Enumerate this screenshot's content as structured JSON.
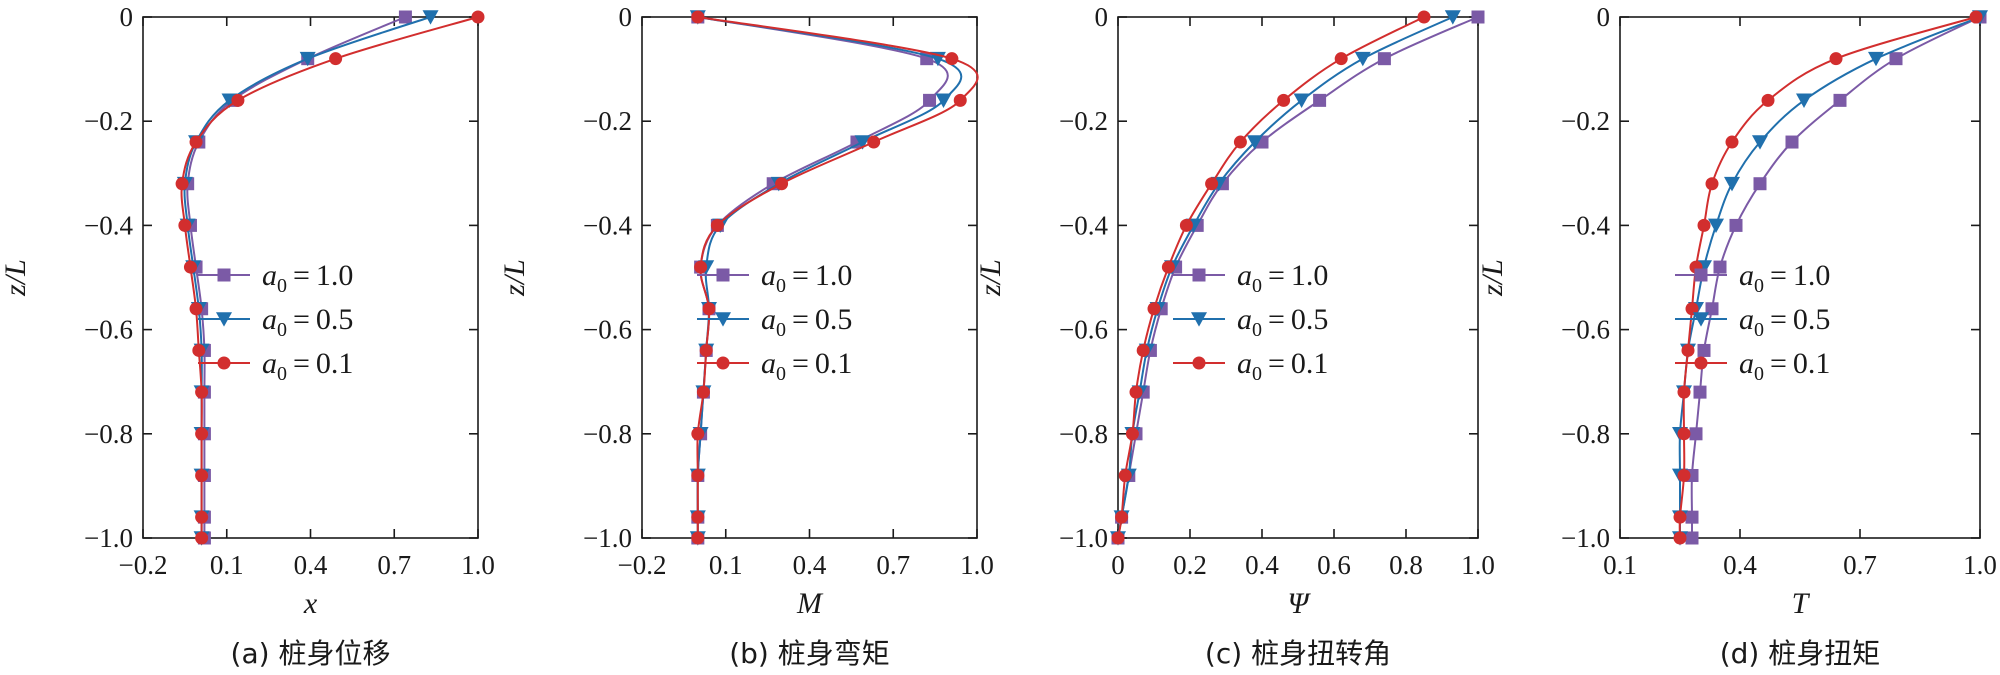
{
  "chart_data": [
    {
      "type": "line",
      "caption": "(a)  桩身位移",
      "xlabel": "x",
      "ylabel": "z/L",
      "xlim": [
        -0.2,
        1.0
      ],
      "ylim": [
        -1.0,
        0
      ],
      "xticks": [
        -0.2,
        0.1,
        0.4,
        0.7,
        1.0
      ],
      "xtick_labels": [
        "−0.2",
        "0.1",
        "0.4",
        "0.7",
        "1.0"
      ],
      "yticks": [
        0,
        -0.2,
        -0.4,
        -0.6,
        -0.8,
        -1.0
      ],
      "ytick_labels": [
        "0",
        "−0.2",
        "−0.4",
        "−0.6",
        "−0.8",
        "−1.0"
      ],
      "legend": "right",
      "series": [
        {
          "name": "1.0",
          "marker": "square",
          "color": "#7b5aa6",
          "x": [
            0.74,
            0.39,
            0.12,
            0.0,
            -0.04,
            -0.03,
            -0.01,
            0.01,
            0.02,
            0.02,
            0.02,
            0.02,
            0.02,
            0.02
          ],
          "y": [
            0,
            -0.08,
            -0.16,
            -0.24,
            -0.32,
            -0.4,
            -0.48,
            -0.56,
            -0.64,
            -0.72,
            -0.8,
            -0.88,
            -0.96,
            -1.0
          ]
        },
        {
          "name": "0.5",
          "marker": "triangle-down",
          "color": "#2070ad",
          "x": [
            0.83,
            0.39,
            0.11,
            -0.01,
            -0.05,
            -0.04,
            -0.02,
            0.0,
            0.01,
            0.01,
            0.01,
            0.01,
            0.01,
            0.01
          ],
          "y": [
            0,
            -0.08,
            -0.16,
            -0.24,
            -0.32,
            -0.4,
            -0.48,
            -0.56,
            -0.64,
            -0.72,
            -0.8,
            -0.88,
            -0.96,
            -1.0
          ]
        },
        {
          "name": "0.1",
          "marker": "circle",
          "color": "#d22e2e",
          "x": [
            1.0,
            0.49,
            0.14,
            -0.01,
            -0.06,
            -0.05,
            -0.03,
            -0.01,
            0.0,
            0.01,
            0.01,
            0.01,
            0.01,
            0.01
          ],
          "y": [
            0,
            -0.08,
            -0.16,
            -0.24,
            -0.32,
            -0.4,
            -0.48,
            -0.56,
            -0.64,
            -0.72,
            -0.8,
            -0.88,
            -0.96,
            -1.0
          ]
        }
      ]
    },
    {
      "type": "line",
      "caption": "(b)  桩身弯矩",
      "xlabel": "M",
      "ylabel": "z/L",
      "xlim": [
        -0.2,
        1.0
      ],
      "ylim": [
        -1.0,
        0
      ],
      "xticks": [
        -0.2,
        0.1,
        0.4,
        0.7,
        1.0
      ],
      "xtick_labels": [
        "−0.2",
        "0.1",
        "0.4",
        "0.7",
        "1.0"
      ],
      "yticks": [
        0,
        -0.2,
        -0.4,
        -0.6,
        -0.8,
        -1.0
      ],
      "ytick_labels": [
        "0",
        "−0.2",
        "−0.4",
        "−0.6",
        "−0.8",
        "−1.0"
      ],
      "legend": "right",
      "series": [
        {
          "name": "1.0",
          "marker": "square",
          "color": "#7b5aa6",
          "x": [
            0.0,
            0.82,
            0.83,
            0.57,
            0.27,
            0.07,
            0.01,
            0.04,
            0.03,
            0.02,
            0.01,
            0.0,
            0.0,
            0.0
          ],
          "y": [
            0,
            -0.08,
            -0.16,
            -0.24,
            -0.32,
            -0.4,
            -0.48,
            -0.56,
            -0.64,
            -0.72,
            -0.8,
            -0.88,
            -0.96,
            -1.0
          ]
        },
        {
          "name": "0.5",
          "marker": "triangle-down",
          "color": "#2070ad",
          "x": [
            0.0,
            0.86,
            0.88,
            0.59,
            0.29,
            0.08,
            0.03,
            0.04,
            0.03,
            0.02,
            0.01,
            0.0,
            0.0,
            0.0
          ],
          "y": [
            0,
            -0.08,
            -0.16,
            -0.24,
            -0.32,
            -0.4,
            -0.48,
            -0.56,
            -0.64,
            -0.72,
            -0.8,
            -0.88,
            -0.96,
            -1.0
          ]
        },
        {
          "name": "0.1",
          "marker": "circle",
          "color": "#d22e2e",
          "x": [
            0.0,
            0.91,
            0.94,
            0.63,
            0.3,
            0.07,
            0.01,
            0.04,
            0.03,
            0.02,
            0.0,
            0.0,
            0.0,
            0.0
          ],
          "y": [
            0,
            -0.08,
            -0.16,
            -0.24,
            -0.32,
            -0.4,
            -0.48,
            -0.56,
            -0.64,
            -0.72,
            -0.8,
            -0.88,
            -0.96,
            -1.0
          ]
        }
      ]
    },
    {
      "type": "line",
      "caption": "(c)  桩身扭转角",
      "xlabel": "Ψ",
      "ylabel": "z/L",
      "xlim": [
        0,
        1.0
      ],
      "ylim": [
        -1.0,
        0
      ],
      "xticks": [
        0,
        0.2,
        0.4,
        0.6,
        0.8,
        1.0
      ],
      "xtick_labels": [
        "0",
        "0.2",
        "0.4",
        "0.6",
        "0.8",
        "1.0"
      ],
      "yticks": [
        0,
        -0.2,
        -0.4,
        -0.6,
        -0.8,
        -1.0
      ],
      "ytick_labels": [
        "0",
        "−0.2",
        "−0.4",
        "−0.6",
        "−0.8",
        "−1.0"
      ],
      "legend": "right",
      "series": [
        {
          "name": "1.0",
          "marker": "square",
          "color": "#7b5aa6",
          "x": [
            1.0,
            0.74,
            0.56,
            0.4,
            0.29,
            0.22,
            0.16,
            0.12,
            0.09,
            0.07,
            0.05,
            0.03,
            0.01,
            0.0
          ],
          "y": [
            0,
            -0.08,
            -0.16,
            -0.24,
            -0.32,
            -0.4,
            -0.48,
            -0.56,
            -0.64,
            -0.72,
            -0.8,
            -0.88,
            -0.96,
            -1.0
          ]
        },
        {
          "name": "0.5",
          "marker": "triangle-down",
          "color": "#2070ad",
          "x": [
            0.93,
            0.68,
            0.51,
            0.38,
            0.28,
            0.21,
            0.15,
            0.11,
            0.08,
            0.06,
            0.04,
            0.03,
            0.01,
            0.0
          ],
          "y": [
            0,
            -0.08,
            -0.16,
            -0.24,
            -0.32,
            -0.4,
            -0.48,
            -0.56,
            -0.64,
            -0.72,
            -0.8,
            -0.88,
            -0.96,
            -1.0
          ]
        },
        {
          "name": "0.1",
          "marker": "circle",
          "color": "#d22e2e",
          "x": [
            0.85,
            0.62,
            0.46,
            0.34,
            0.26,
            0.19,
            0.14,
            0.1,
            0.07,
            0.05,
            0.04,
            0.02,
            0.01,
            0.0
          ],
          "y": [
            0,
            -0.08,
            -0.16,
            -0.24,
            -0.32,
            -0.4,
            -0.48,
            -0.56,
            -0.64,
            -0.72,
            -0.8,
            -0.88,
            -0.96,
            -1.0
          ]
        }
      ]
    },
    {
      "type": "line",
      "caption": "(d)  桩身扭矩",
      "xlabel": "T",
      "ylabel": "z/L",
      "xlim": [
        0.1,
        1.0
      ],
      "ylim": [
        -1.0,
        0
      ],
      "xticks": [
        0.1,
        0.4,
        0.7,
        1.0
      ],
      "xtick_labels": [
        "0.1",
        "0.4",
        "0.7",
        "1.0"
      ],
      "yticks": [
        0,
        -0.2,
        -0.4,
        -0.6,
        -0.8,
        -1.0
      ],
      "ytick_labels": [
        "0",
        "−0.2",
        "−0.4",
        "−0.6",
        "−0.8",
        "−1.0"
      ],
      "legend": "right",
      "series": [
        {
          "name": "1.0",
          "marker": "square",
          "color": "#7b5aa6",
          "x": [
            1.0,
            0.79,
            0.65,
            0.53,
            0.45,
            0.39,
            0.35,
            0.33,
            0.31,
            0.3,
            0.29,
            0.28,
            0.28,
            0.28
          ],
          "y": [
            0,
            -0.08,
            -0.16,
            -0.24,
            -0.32,
            -0.4,
            -0.48,
            -0.56,
            -0.64,
            -0.72,
            -0.8,
            -0.88,
            -0.96,
            -1.0
          ]
        },
        {
          "name": "0.5",
          "marker": "triangle-down",
          "color": "#2070ad",
          "x": [
            1.0,
            0.74,
            0.56,
            0.45,
            0.38,
            0.34,
            0.31,
            0.29,
            0.27,
            0.26,
            0.25,
            0.25,
            0.25,
            0.25
          ],
          "y": [
            0,
            -0.08,
            -0.16,
            -0.24,
            -0.32,
            -0.4,
            -0.48,
            -0.56,
            -0.64,
            -0.72,
            -0.8,
            -0.88,
            -0.96,
            -1.0
          ]
        },
        {
          "name": "0.1",
          "marker": "circle",
          "color": "#d22e2e",
          "x": [
            0.99,
            0.64,
            0.47,
            0.38,
            0.33,
            0.31,
            0.29,
            0.28,
            0.27,
            0.26,
            0.26,
            0.26,
            0.25,
            0.25
          ],
          "y": [
            0,
            -0.08,
            -0.16,
            -0.24,
            -0.32,
            -0.4,
            -0.48,
            -0.56,
            -0.64,
            -0.72,
            -0.8,
            -0.88,
            -0.96,
            -1.0
          ]
        }
      ]
    }
  ]
}
